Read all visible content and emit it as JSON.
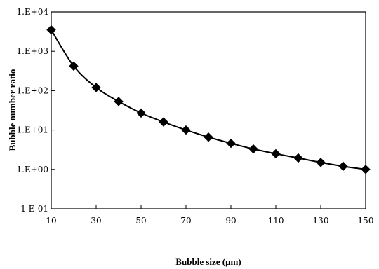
{
  "chart_data": {
    "type": "line",
    "xlabel": "Bubble size (μm)",
    "ylabel": "Bubble number ratio",
    "xlim": [
      10,
      150
    ],
    "ylim_log10": [
      -1,
      4
    ],
    "y_scale": "log",
    "grid": false,
    "legend": "none",
    "x_ticks": [
      "10",
      "30",
      "50",
      "70",
      "90",
      "110",
      "130",
      "150"
    ],
    "y_ticks": [
      "1.E+04",
      "1.E+03",
      "1.E+02",
      "1.E+01",
      "1.E+00",
      "1 E-01"
    ],
    "series": [
      {
        "marker": "diamond",
        "color": "#000000",
        "x": [
          10,
          20,
          30,
          40,
          50,
          60,
          70,
          80,
          90,
          100,
          110,
          120,
          130,
          140,
          150
        ],
        "y": [
          3500,
          420,
          120,
          53,
          27,
          16,
          10,
          6.6,
          4.6,
          3.3,
          2.5,
          1.95,
          1.5,
          1.2,
          1.0
        ]
      }
    ]
  }
}
